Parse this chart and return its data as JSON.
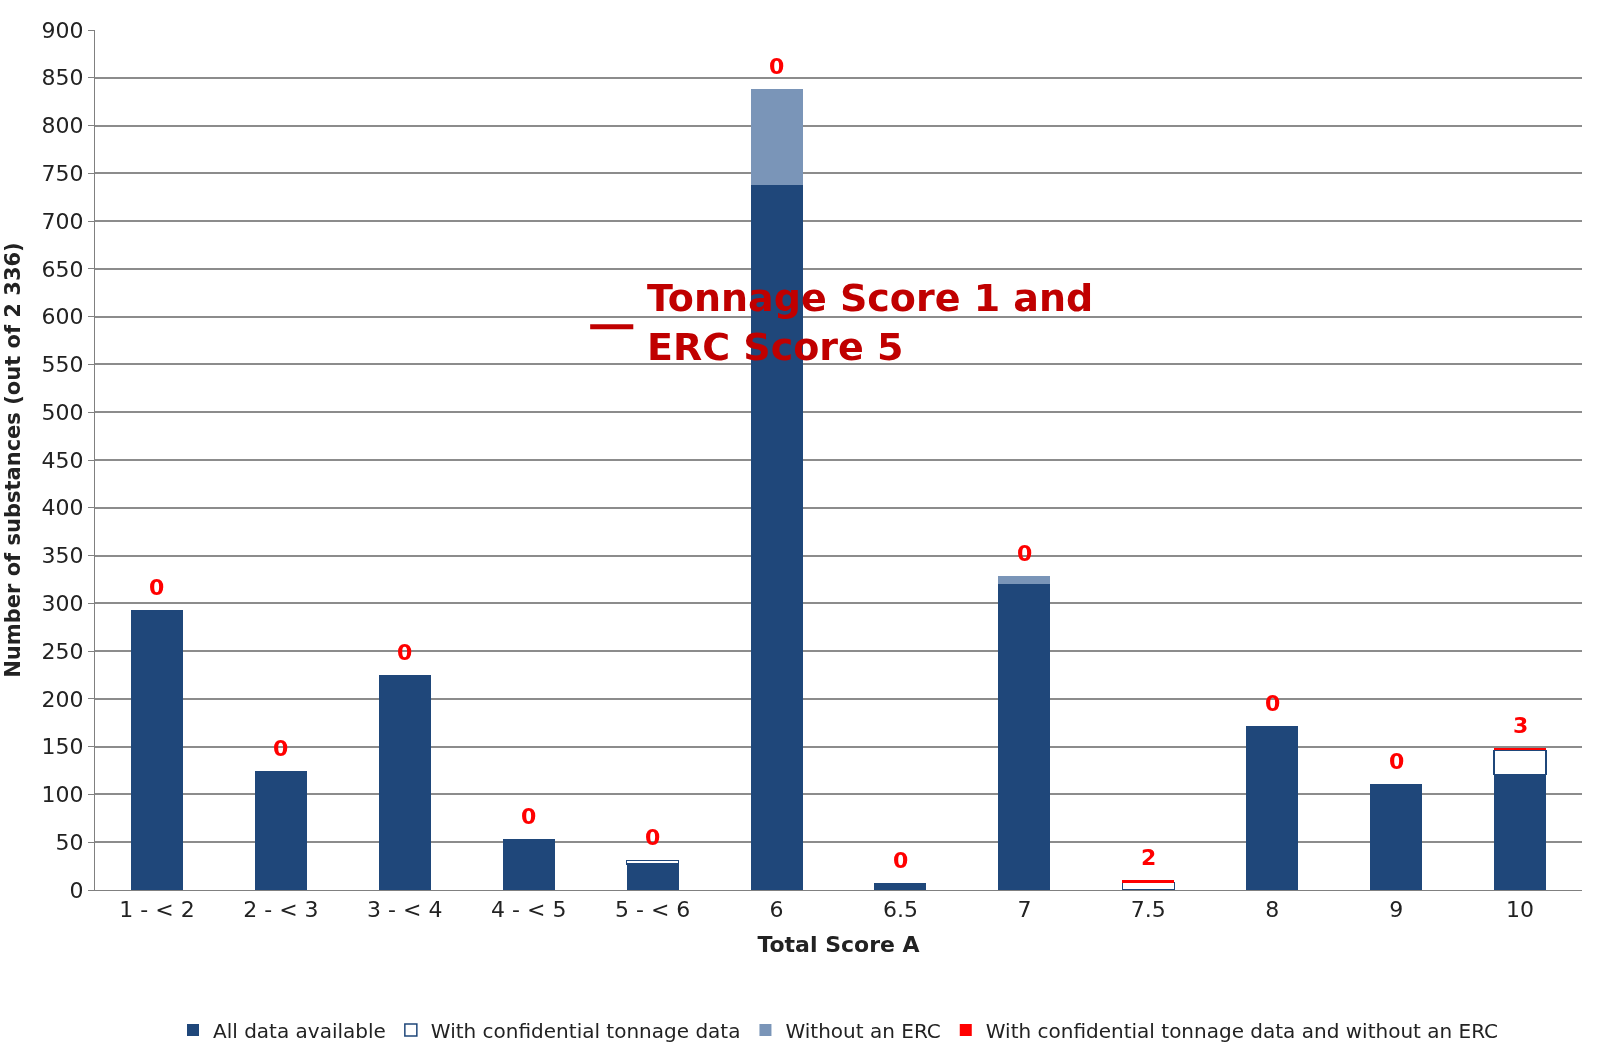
{
  "chart_data": {
    "type": "bar",
    "stacked": true,
    "xlabel": "Total Score A",
    "ylabel": "Number of substances (out of 2 336)",
    "categories": [
      "1 - < 2",
      "2 - < 3",
      "3 - < 4",
      "4 - < 5",
      "5 - < 6",
      "6",
      "6.5",
      "7",
      "7.5",
      "8",
      "9",
      "10"
    ],
    "series": [
      {
        "name": "All data available",
        "color": "#1f477a",
        "values": [
          293,
          125,
          225,
          53,
          27,
          738,
          7,
          320,
          0,
          172,
          111,
          121
        ]
      },
      {
        "name": "With confidential tonnage data",
        "color": "#ffffff",
        "values": [
          0,
          0,
          0,
          0,
          4,
          0,
          0,
          0,
          8,
          0,
          0,
          25
        ]
      },
      {
        "name": "Without an ERC",
        "color": "#7a95b8",
        "values": [
          0,
          0,
          0,
          0,
          0,
          100,
          0,
          9,
          0,
          0,
          0,
          0
        ]
      },
      {
        "name": "With confidential tonnage data and without an ERC",
        "color": "#ff0000",
        "values": [
          0,
          0,
          0,
          0,
          0,
          0,
          0,
          0,
          2,
          0,
          0,
          3
        ],
        "value_labels": [
          "0",
          "0",
          "0",
          "0",
          "0",
          "0",
          "0",
          "0",
          "2",
          "0",
          "0",
          "3"
        ]
      }
    ],
    "ylim": [
      0,
      900
    ],
    "yticks": [
      0,
      50,
      100,
      150,
      200,
      250,
      300,
      350,
      400,
      450,
      500,
      550,
      600,
      650,
      700,
      750,
      800,
      850,
      900
    ],
    "grid": "y",
    "legend": "bottom",
    "annotations": [
      "Tonnage Score 1 and\nERC Score 5"
    ]
  }
}
